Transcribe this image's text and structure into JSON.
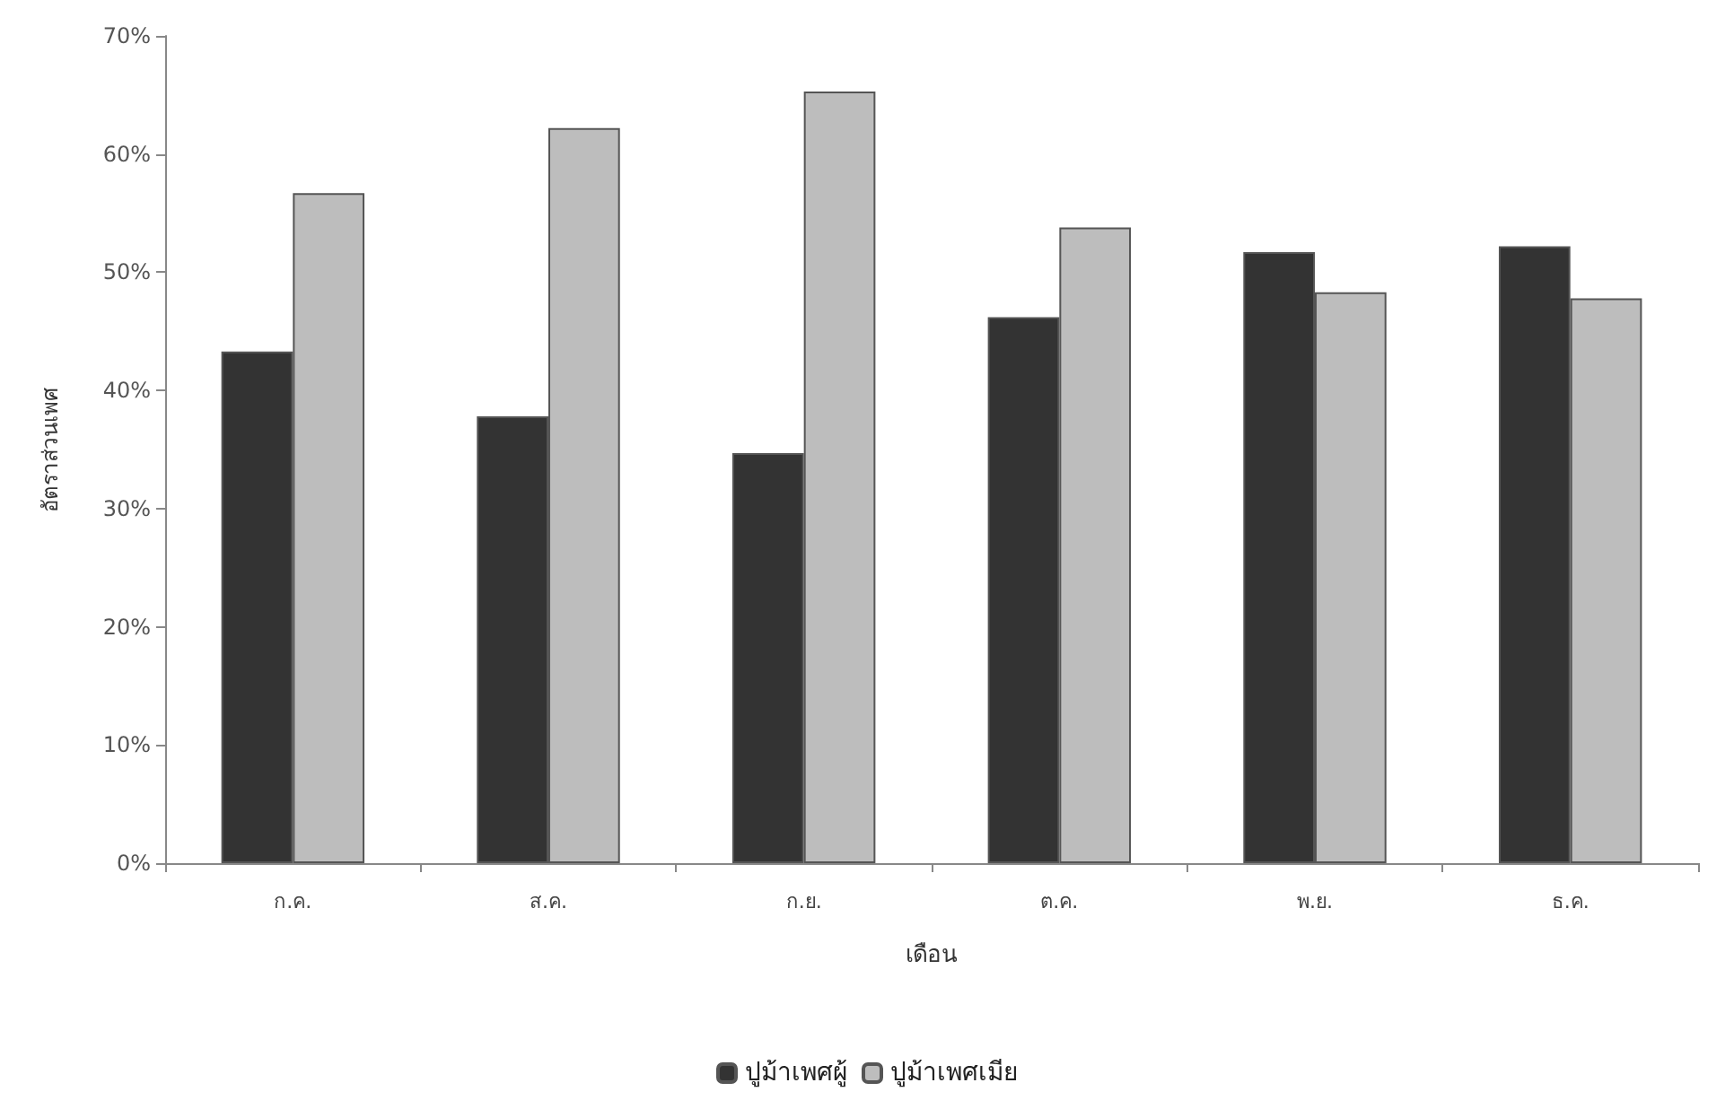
{
  "chart_data": {
    "type": "bar",
    "xlabel": "เดือน",
    "ylabel": "อัตราส่วนเพศ",
    "categories": [
      "ก.ค.",
      "ส.ค.",
      "ก.ย.",
      "ต.ค.",
      "พ.ย.",
      "ธ.ค."
    ],
    "series": [
      {
        "name": "ปูม้าเพศผู้",
        "color": "#333333",
        "values": [
          43.3,
          37.8,
          34.7,
          46.2,
          51.7,
          52.2
        ]
      },
      {
        "name": "ปูม้าเพศเมีย",
        "color": "#bdbdbd",
        "values": [
          56.7,
          62.2,
          65.3,
          53.8,
          48.3,
          47.8
        ]
      }
    ],
    "ylim": [
      0,
      70
    ],
    "yticks": [
      {
        "value": 0,
        "label": "0%"
      },
      {
        "value": 10,
        "label": "10%"
      },
      {
        "value": 20,
        "label": "20%"
      },
      {
        "value": 30,
        "label": "30%"
      },
      {
        "value": 40,
        "label": "40%"
      },
      {
        "value": 50,
        "label": "50%"
      },
      {
        "value": 60,
        "label": "60%"
      },
      {
        "value": 70,
        "label": "70%"
      }
    ],
    "grid": false,
    "legend": "bottom"
  }
}
